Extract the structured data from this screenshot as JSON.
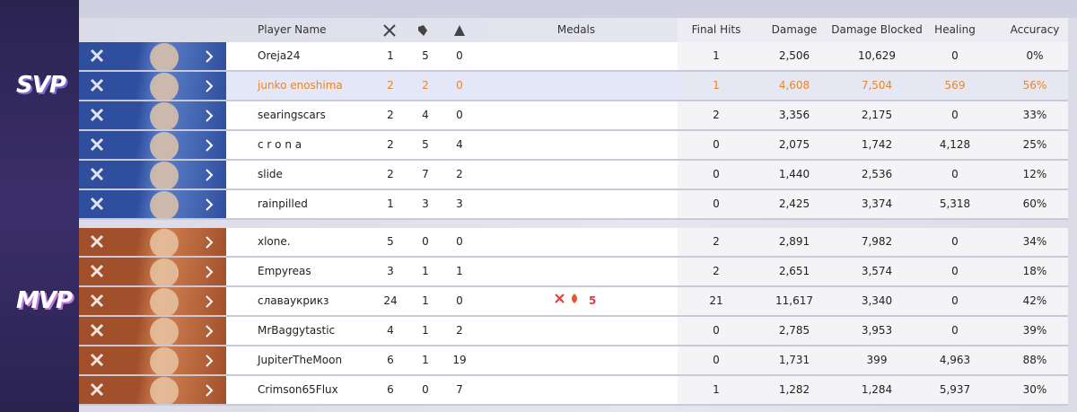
{
  "header": {
    "player_name": "Player Name",
    "medals": "Medals",
    "final_hits": "Final Hits",
    "damage": "Damage",
    "damage_blocked": "Damage Blocked",
    "healing": "Healing",
    "accuracy": "Accuracy"
  },
  "teams": [
    {
      "label": "SVP",
      "players": [
        {
          "name": "Oreja24",
          "kills": "1",
          "deaths": "5",
          "assists": "0",
          "final_hits": "1",
          "damage": "2,506",
          "damage_blocked": "10,629",
          "healing": "0",
          "accuracy": "0%"
        },
        {
          "name": "junko enoshima",
          "kills": "2",
          "deaths": "2",
          "assists": "0",
          "final_hits": "1",
          "damage": "4,608",
          "damage_blocked": "7,504",
          "healing": "569",
          "accuracy": "56%"
        },
        {
          "name": "searingscars",
          "kills": "2",
          "deaths": "4",
          "assists": "0",
          "final_hits": "2",
          "damage": "3,356",
          "damage_blocked": "2,175",
          "healing": "0",
          "accuracy": "33%"
        },
        {
          "name": "c r o n a",
          "kills": "2",
          "deaths": "5",
          "assists": "4",
          "final_hits": "0",
          "damage": "2,075",
          "damage_blocked": "1,742",
          "healing": "4,128",
          "accuracy": "25%"
        },
        {
          "name": "slide",
          "kills": "2",
          "deaths": "7",
          "assists": "2",
          "final_hits": "0",
          "damage": "1,440",
          "damage_blocked": "2,536",
          "healing": "0",
          "accuracy": "12%"
        },
        {
          "name": "rainpilled",
          "kills": "1",
          "deaths": "3",
          "assists": "3",
          "final_hits": "0",
          "damage": "2,425",
          "damage_blocked": "3,374",
          "healing": "5,318",
          "accuracy": "60%"
        }
      ]
    },
    {
      "label": "MVP",
      "players": [
        {
          "name": "xlone.",
          "kills": "5",
          "deaths": "0",
          "assists": "0",
          "final_hits": "2",
          "damage": "2,891",
          "damage_blocked": "7,982",
          "healing": "0",
          "accuracy": "34%"
        },
        {
          "name": "Empyreas",
          "kills": "3",
          "deaths": "1",
          "assists": "1",
          "final_hits": "2",
          "damage": "2,651",
          "damage_blocked": "3,574",
          "healing": "0",
          "accuracy": "18%"
        },
        {
          "name": "славаукрикз",
          "kills": "24",
          "deaths": "1",
          "assists": "0",
          "medal_count": "5",
          "final_hits": "21",
          "damage": "11,617",
          "damage_blocked": "3,340",
          "healing": "0",
          "accuracy": "42%"
        },
        {
          "name": "MrBaggytastic",
          "kills": "4",
          "deaths": "1",
          "assists": "2",
          "final_hits": "0",
          "damage": "2,785",
          "damage_blocked": "3,953",
          "healing": "0",
          "accuracy": "39%"
        },
        {
          "name": "JupiterTheMoon",
          "kills": "6",
          "deaths": "1",
          "assists": "19",
          "final_hits": "0",
          "damage": "1,731",
          "damage_blocked": "399",
          "healing": "4,963",
          "accuracy": "88%"
        },
        {
          "name": "Crimson65Flux",
          "kills": "6",
          "deaths": "0",
          "assists": "7",
          "final_hits": "1",
          "damage": "1,282",
          "damage_blocked": "1,284",
          "healing": "5,937",
          "accuracy": "30%"
        }
      ]
    }
  ]
}
